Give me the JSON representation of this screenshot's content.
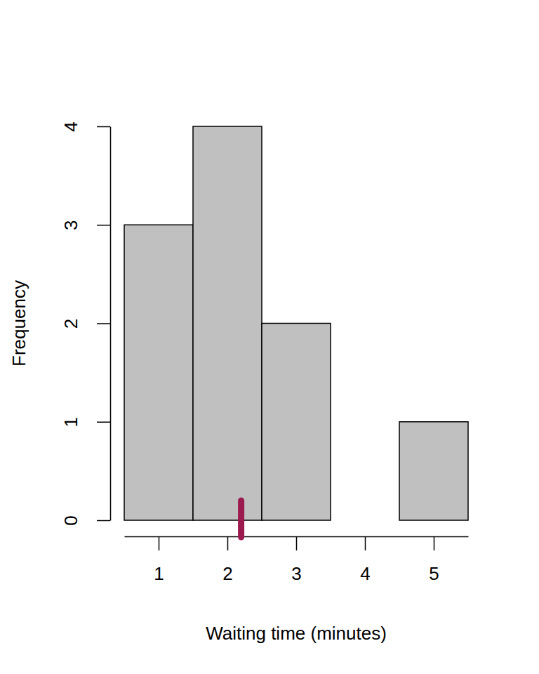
{
  "chart_data": {
    "type": "histogram",
    "x_label": "Waiting time (minutes)",
    "y_label": "Frequency",
    "bins": [
      0.5,
      1.5,
      2.5,
      3.5,
      4.5,
      5.5
    ],
    "values": [
      3,
      4,
      2,
      0,
      1
    ],
    "color": "#c0c0c0",
    "mean": 2.2,
    "xlim": [
      0.5,
      5.5
    ],
    "xticks": [
      1,
      2,
      3,
      4,
      5
    ],
    "ylim": [
      0,
      4
    ],
    "yticks": [
      0,
      1,
      2,
      3,
      4
    ]
  }
}
